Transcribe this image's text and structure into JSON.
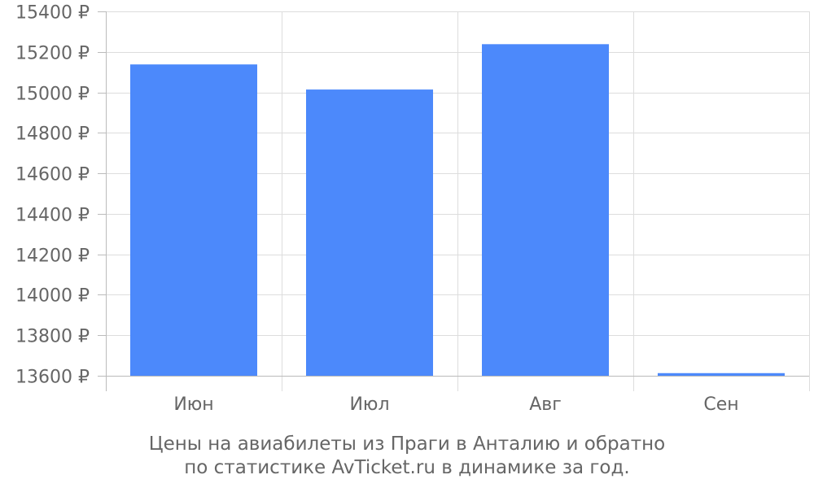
{
  "chart_data": {
    "type": "bar",
    "categories": [
      "Июн",
      "Июл",
      "Авг",
      "Сен"
    ],
    "series": [
      {
        "values": [
          15138,
          15014,
          15238,
          13613
        ],
        "color": "#4c89fb"
      }
    ],
    "ylim": [
      13600,
      15400
    ],
    "yticks": [
      13600,
      13800,
      14000,
      14200,
      14400,
      14600,
      14800,
      15000,
      15200,
      15400
    ],
    "y_tick_suffix": " ₽",
    "grid": true,
    "legend": "none"
  },
  "caption": {
    "line1": "Цены на авиабилеты из Праги в Анталию и обратно",
    "line2": "по статистике AvTicket.ru в динамике за год."
  }
}
